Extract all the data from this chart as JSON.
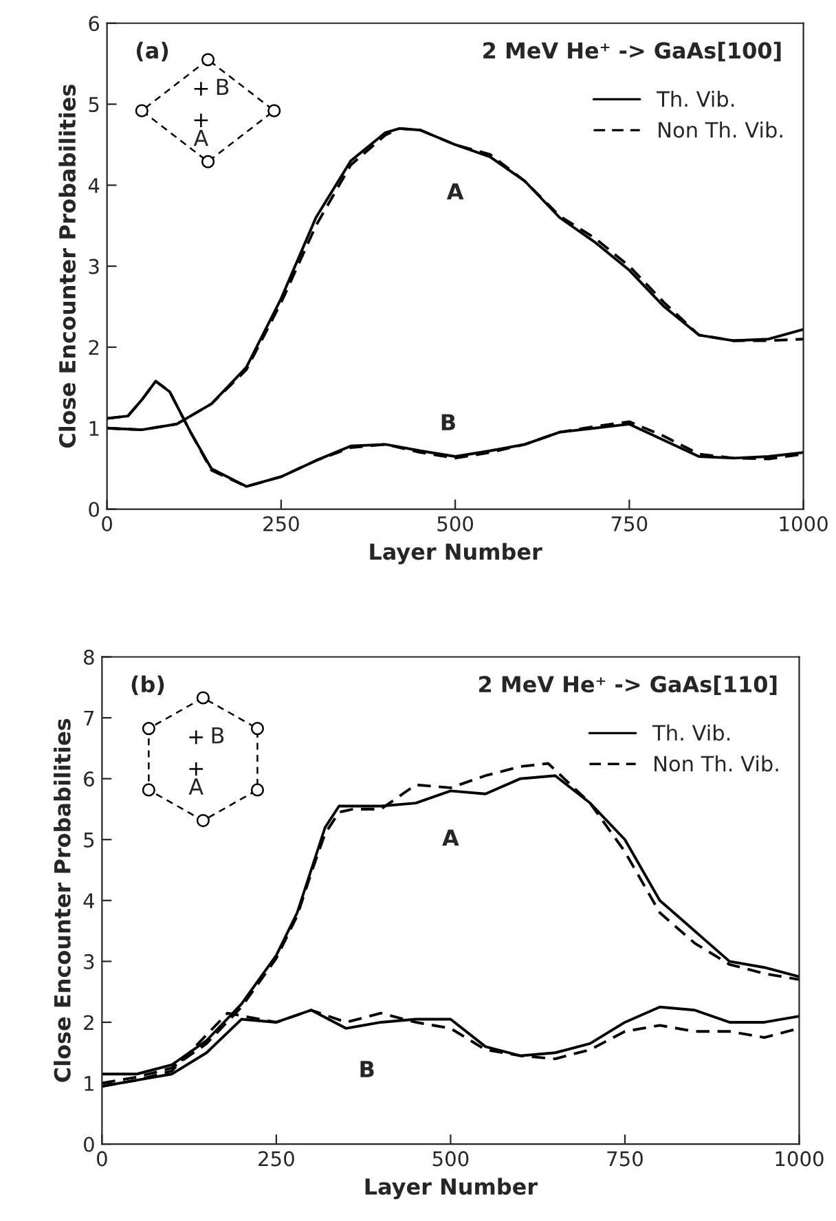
{
  "chart_data": [
    {
      "type": "line",
      "title": "2 MeV He⁺ -> GaAs[100]",
      "xlabel": "Layer Number",
      "ylabel": "Close Encounter Probabilities",
      "xlim": [
        0,
        1000
      ],
      "ylim": [
        0,
        6
      ],
      "xticks": [
        0,
        250,
        500,
        750,
        1000
      ],
      "yticks": [
        0,
        1,
        2,
        3,
        4,
        5,
        6
      ],
      "grid": false,
      "legend": "top right",
      "annotations": [
        "(a)",
        "B",
        "A",
        "A",
        "B"
      ],
      "series": [
        {
          "name": "Th. Vib.",
          "color": "#000000",
          "line_style": "solid",
          "x": [
            0,
            50,
            100,
            150,
            200,
            250,
            300,
            350,
            400,
            420,
            450,
            500,
            550,
            600,
            650,
            700,
            750,
            800,
            850,
            900,
            950,
            1000
          ],
          "values": [
            1.0,
            0.98,
            1.05,
            1.3,
            1.75,
            2.6,
            3.6,
            4.3,
            4.65,
            4.7,
            4.68,
            4.5,
            4.35,
            4.05,
            3.6,
            3.3,
            2.95,
            2.5,
            2.15,
            2.08,
            2.1,
            2.22
          ]
        },
        {
          "name": "Non Th. Vib.",
          "color": "#000000",
          "line_style": "dashed",
          "x": [
            0,
            50,
            100,
            150,
            200,
            250,
            300,
            350,
            400,
            420,
            450,
            500,
            550,
            600,
            650,
            700,
            750,
            800,
            850,
            900,
            950,
            1000
          ],
          "values": [
            1.0,
            0.98,
            1.05,
            1.3,
            1.72,
            2.55,
            3.5,
            4.25,
            4.62,
            4.7,
            4.68,
            4.5,
            4.38,
            4.05,
            3.62,
            3.35,
            3.0,
            2.55,
            2.15,
            2.08,
            2.08,
            2.1
          ]
        },
        {
          "color": "#000000",
          "line_style": "solid",
          "x": [
            0,
            30,
            50,
            70,
            90,
            120,
            150,
            200,
            250,
            300,
            350,
            400,
            450,
            500,
            550,
            600,
            650,
            700,
            750,
            800,
            850,
            900,
            950,
            1000
          ],
          "values": [
            1.12,
            1.15,
            1.35,
            1.58,
            1.45,
            0.95,
            0.5,
            0.28,
            0.4,
            0.6,
            0.78,
            0.8,
            0.72,
            0.65,
            0.72,
            0.8,
            0.95,
            1.0,
            1.05,
            0.85,
            0.65,
            0.63,
            0.65,
            0.7
          ]
        },
        {
          "color": "#000000",
          "line_style": "dashed",
          "x": [
            0,
            30,
            50,
            70,
            90,
            120,
            150,
            200,
            250,
            300,
            350,
            400,
            450,
            500,
            550,
            600,
            650,
            700,
            750,
            800,
            850,
            900,
            950,
            1000
          ],
          "values": [
            1.12,
            1.15,
            1.35,
            1.58,
            1.45,
            0.95,
            0.48,
            0.28,
            0.4,
            0.6,
            0.76,
            0.8,
            0.7,
            0.63,
            0.7,
            0.8,
            0.95,
            1.02,
            1.08,
            0.9,
            0.68,
            0.63,
            0.62,
            0.68
          ]
        }
      ]
    },
    {
      "type": "line",
      "title": "2 MeV He⁺ -> GaAs[110]",
      "xlabel": "Layer Number",
      "ylabel": "Close Encounter Probabilities",
      "xlim": [
        0,
        1000
      ],
      "ylim": [
        0,
        8
      ],
      "xticks": [
        0,
        250,
        500,
        750,
        1000
      ],
      "yticks": [
        0,
        1,
        2,
        3,
        4,
        5,
        6,
        7,
        8
      ],
      "grid": false,
      "legend": "top right",
      "annotations": [
        "(b)",
        "B",
        "A",
        "A",
        "B"
      ],
      "series": [
        {
          "name": "Th. Vib.",
          "color": "#000000",
          "line_style": "solid",
          "x": [
            0,
            50,
            100,
            150,
            200,
            250,
            280,
            300,
            320,
            340,
            360,
            400,
            450,
            500,
            550,
            600,
            650,
            700,
            750,
            800,
            850,
            900,
            950,
            1000
          ],
          "values": [
            1.15,
            1.15,
            1.3,
            1.7,
            2.3,
            3.1,
            3.8,
            4.5,
            5.2,
            5.55,
            5.55,
            5.55,
            5.6,
            5.8,
            5.75,
            6.0,
            6.05,
            5.6,
            5.0,
            4.0,
            3.5,
            3.0,
            2.9,
            2.75
          ]
        },
        {
          "name": "Non Th. Vib.",
          "color": "#000000",
          "line_style": "dashed",
          "x": [
            0,
            50,
            100,
            150,
            200,
            250,
            280,
            300,
            320,
            340,
            360,
            400,
            450,
            500,
            550,
            600,
            640,
            700,
            750,
            800,
            850,
            900,
            950,
            1000
          ],
          "values": [
            1.0,
            1.1,
            1.25,
            1.65,
            2.25,
            3.05,
            3.75,
            4.45,
            5.1,
            5.45,
            5.5,
            5.5,
            5.9,
            5.85,
            6.05,
            6.2,
            6.25,
            5.6,
            4.8,
            3.8,
            3.3,
            2.95,
            2.8,
            2.7
          ]
        },
        {
          "color": "#000000",
          "line_style": "solid",
          "x": [
            0,
            50,
            100,
            150,
            200,
            250,
            300,
            350,
            400,
            450,
            500,
            550,
            600,
            650,
            700,
            750,
            800,
            850,
            900,
            950,
            1000
          ],
          "values": [
            0.95,
            1.05,
            1.15,
            1.5,
            2.05,
            2.0,
            2.2,
            1.9,
            2.0,
            2.05,
            2.05,
            1.6,
            1.45,
            1.5,
            1.65,
            2.0,
            2.25,
            2.2,
            2.0,
            2.0,
            2.1
          ]
        },
        {
          "color": "#000000",
          "line_style": "dashed",
          "x": [
            0,
            50,
            100,
            180,
            250,
            300,
            350,
            400,
            450,
            500,
            550,
            600,
            650,
            700,
            750,
            800,
            850,
            900,
            950,
            1000
          ],
          "values": [
            0.95,
            1.05,
            1.2,
            2.15,
            2.0,
            2.2,
            2.0,
            2.15,
            2.0,
            1.9,
            1.55,
            1.45,
            1.4,
            1.55,
            1.85,
            1.95,
            1.85,
            1.85,
            1.75,
            1.9
          ]
        }
      ]
    }
  ]
}
